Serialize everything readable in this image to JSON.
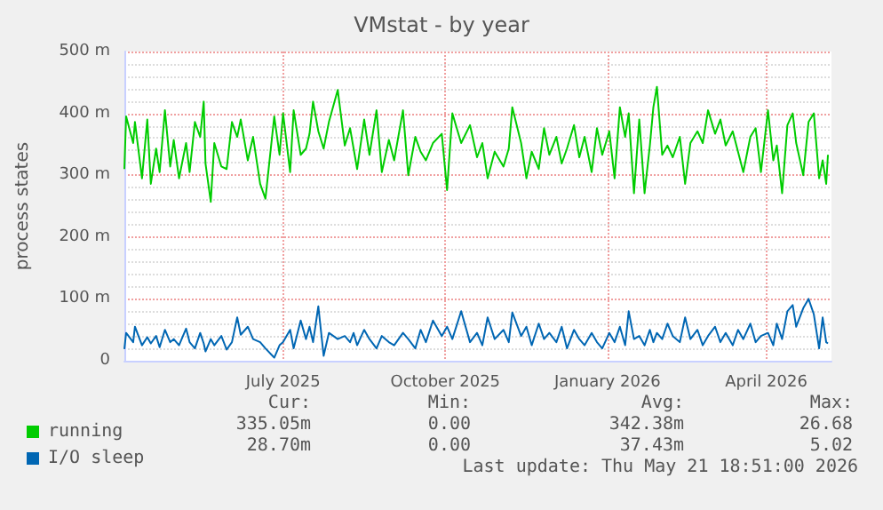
{
  "chart_data": {
    "type": "line",
    "title": "VMstat - by year",
    "ylabel": "process states",
    "x": [
      "2025-04-02",
      "2025-04-03",
      "2025-04-07",
      "2025-04-08",
      "2025-04-12",
      "2025-04-15",
      "2025-04-17",
      "2025-04-20",
      "2025-04-22",
      "2025-04-25",
      "2025-04-28",
      "2025-04-30",
      "2025-05-03",
      "2025-05-07",
      "2025-05-09",
      "2025-05-12",
      "2025-05-15",
      "2025-05-17",
      "2025-05-18",
      "2025-05-21",
      "2025-05-23",
      "2025-05-27",
      "2025-05-30",
      "2025-06-02",
      "2025-06-05",
      "2025-06-07",
      "2025-06-11",
      "2025-06-14",
      "2025-06-18",
      "2025-06-21",
      "2025-06-26",
      "2025-06-29",
      "2025-07-01",
      "2025-07-05",
      "2025-07-07",
      "2025-07-11",
      "2025-07-14",
      "2025-07-16",
      "2025-07-18",
      "2025-07-21",
      "2025-07-24",
      "2025-07-27",
      "2025-08-01",
      "2025-08-05",
      "2025-08-08",
      "2025-08-10",
      "2025-08-12",
      "2025-08-16",
      "2025-08-19",
      "2025-08-23",
      "2025-08-26",
      "2025-08-30",
      "2025-09-02",
      "2025-09-07",
      "2025-09-10",
      "2025-09-14",
      "2025-09-17",
      "2025-09-20",
      "2025-09-24",
      "2025-09-29",
      "2025-10-02",
      "2025-10-05",
      "2025-10-10",
      "2025-10-15",
      "2025-10-19",
      "2025-10-22",
      "2025-10-25",
      "2025-10-29",
      "2025-11-03",
      "2025-11-06",
      "2025-11-08",
      "2025-11-13",
      "2025-11-16",
      "2025-11-19",
      "2025-11-23",
      "2025-11-26",
      "2025-11-29",
      "2025-12-03",
      "2025-12-06",
      "2025-12-09",
      "2025-12-13",
      "2025-12-16",
      "2025-12-19",
      "2025-12-23",
      "2025-12-26",
      "2025-12-29",
      "2026-01-02",
      "2026-01-05",
      "2026-01-08",
      "2026-01-11",
      "2026-01-13",
      "2026-01-16",
      "2026-01-19",
      "2026-01-22",
      "2026-01-25",
      "2026-01-27",
      "2026-01-29",
      "2026-02-01",
      "2026-02-04",
      "2026-02-07",
      "2026-02-11",
      "2026-02-14",
      "2026-02-17",
      "2026-02-21",
      "2026-02-24",
      "2026-02-27",
      "2026-03-03",
      "2026-03-06",
      "2026-03-09",
      "2026-03-13",
      "2026-03-16",
      "2026-03-19",
      "2026-03-23",
      "2026-03-26",
      "2026-03-29",
      "2026-04-02",
      "2026-04-05",
      "2026-04-07",
      "2026-04-10",
      "2026-04-13",
      "2026-04-16",
      "2026-04-18",
      "2026-04-22",
      "2026-04-25",
      "2026-04-28",
      "2026-05-01",
      "2026-05-03",
      "2026-05-05",
      "2026-05-06"
    ],
    "series": [
      {
        "name": "running",
        "color": "#00cc00",
        "values": [
          310,
          395,
          352,
          386,
          295,
          390,
          286,
          343,
          305,
          405,
          314,
          357,
          295,
          352,
          305,
          386,
          362,
          419,
          319,
          257,
          352,
          314,
          310,
          386,
          362,
          390,
          324,
          362,
          286,
          262,
          395,
          333,
          400,
          305,
          405,
          333,
          343,
          367,
          419,
          371,
          343,
          386,
          438,
          348,
          376,
          343,
          310,
          390,
          333,
          405,
          305,
          357,
          324,
          405,
          300,
          362,
          338,
          324,
          352,
          367,
          276,
          400,
          352,
          381,
          329,
          352,
          295,
          338,
          314,
          343,
          410,
          352,
          295,
          338,
          310,
          376,
          333,
          362,
          319,
          343,
          381,
          329,
          362,
          305,
          376,
          333,
          371,
          295,
          410,
          362,
          400,
          271,
          390,
          271,
          348,
          410,
          443,
          333,
          348,
          329,
          362,
          286,
          352,
          371,
          352,
          405,
          367,
          390,
          348,
          371,
          338,
          305,
          362,
          376,
          305,
          405,
          324,
          348,
          271,
          381,
          400,
          352,
          300,
          386,
          400,
          295,
          324,
          286,
          333
        ]
      },
      {
        "name": "I/O sleep",
        "color": "#0066b3",
        "values": [
          19,
          45,
          30,
          55,
          25,
          38,
          28,
          40,
          22,
          50,
          30,
          35,
          25,
          52,
          30,
          20,
          45,
          28,
          15,
          35,
          25,
          40,
          18,
          30,
          70,
          42,
          55,
          35,
          30,
          20,
          5,
          25,
          30,
          50,
          20,
          65,
          35,
          55,
          30,
          88,
          8,
          45,
          35,
          40,
          30,
          45,
          25,
          50,
          35,
          20,
          40,
          30,
          25,
          45,
          35,
          20,
          50,
          30,
          65,
          40,
          55,
          35,
          80,
          30,
          45,
          25,
          70,
          35,
          50,
          30,
          78,
          40,
          55,
          25,
          60,
          35,
          45,
          30,
          55,
          20,
          50,
          35,
          25,
          45,
          30,
          20,
          45,
          30,
          55,
          25,
          80,
          35,
          40,
          25,
          50,
          30,
          45,
          35,
          60,
          40,
          30,
          70,
          35,
          50,
          25,
          40,
          55,
          30,
          45,
          25,
          50,
          35,
          60,
          30,
          40,
          45,
          25,
          60,
          35,
          80,
          90,
          55,
          85,
          100,
          75,
          20,
          70,
          30,
          28
        ]
      }
    ],
    "xlim": [
      "2025-04-02",
      "2026-05-08"
    ],
    "xticks": [
      {
        "value": "2025-07-01",
        "label": "July 2025"
      },
      {
        "value": "2025-10-01",
        "label": "October 2025"
      },
      {
        "value": "2026-01-01",
        "label": "January 2026"
      },
      {
        "value": "2026-04-01",
        "label": "April 2026"
      }
    ],
    "ylim": [
      0,
      500
    ],
    "yticks": [
      0,
      {
        "value": 100,
        "label": "100 m"
      },
      {
        "value": 200,
        "label": "200 m"
      },
      {
        "value": 300,
        "label": "300 m"
      },
      {
        "value": 400,
        "label": "400 m"
      },
      {
        "value": 500,
        "label": "500 m"
      }
    ],
    "grid": true,
    "legend": "bottom left",
    "marker": "none",
    "line_style": "solid",
    "annotations": [
      "Cur:",
      "Min:",
      "Avg:",
      "Max:",
      "335.05m",
      "0.00",
      "342.38m",
      "26.68",
      "28.70m",
      "0.00",
      "37.43m",
      "5.02",
      "Last update: Thu May 21 18:51:00 2026"
    ]
  }
}
